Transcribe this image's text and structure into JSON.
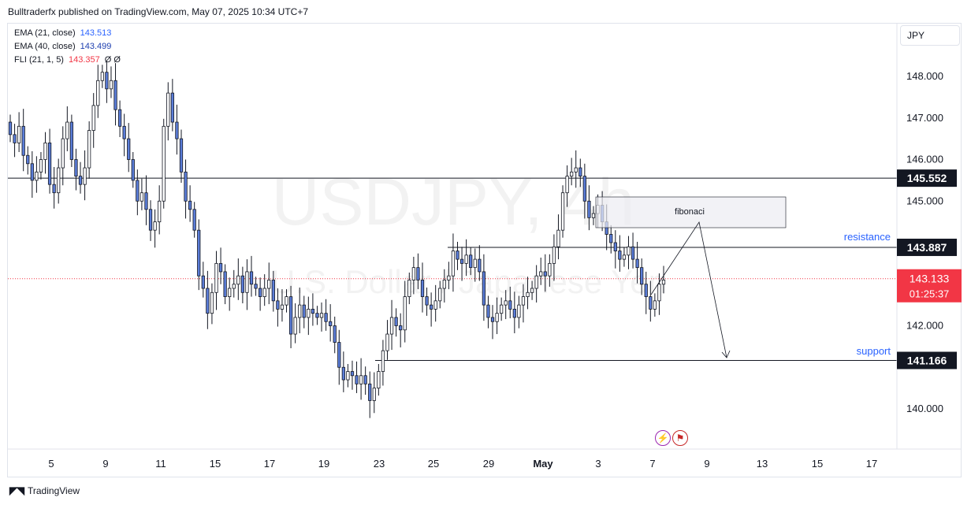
{
  "header": {
    "text": "Bulltraderfx published on TradingView.com, May 07, 2025 10:34 UTC+7"
  },
  "legend": [
    {
      "label": "EMA (21, close)",
      "value": "143.513",
      "color": "#2962ff",
      "extra": ""
    },
    {
      "label": "EMA (40, close)",
      "value": "143.499",
      "color": "#1e3fb0",
      "extra": ""
    },
    {
      "label": "FLI (21, 1, 5)",
      "value": "143.357",
      "color": "#f23645",
      "extra": "Ø  Ø"
    }
  ],
  "currency": "JPY",
  "watermark": {
    "symbol": "USDJPY, 4h",
    "name": "U.S. Dollar / Japanese Yen"
  },
  "footer": {
    "brand": "TradingView"
  },
  "annotations": {
    "fib_label": "fibonaci",
    "resistance_label": "resistance",
    "support_label": "support"
  },
  "colors": {
    "up_candle": "#ffffff",
    "down_candle": "#5b7dd8",
    "candle_border": "#131722",
    "current_price": "#f23645",
    "level_line": "#131722",
    "label_blue": "#2962ff"
  },
  "chart_data": {
    "type": "candlestick",
    "title": "USDJPY, 4h",
    "subtitle": "U.S. Dollar / Japanese Yen",
    "x_tick_labels": [
      "5",
      "9",
      "11",
      "15",
      "17",
      "19",
      "23",
      "25",
      "29",
      "May",
      "3",
      "7",
      "9",
      "13",
      "15",
      "17"
    ],
    "y_tick_labels": [
      "148.000",
      "147.000",
      "146.000",
      "145.000",
      "142.000",
      "140.000"
    ],
    "ylim": [
      139.1,
      148.6
    ],
    "levels": [
      {
        "name": "145.552",
        "value": 145.552
      },
      {
        "name": "143.887",
        "value": 143.887,
        "label": "resistance"
      },
      {
        "name": "141.166",
        "value": 141.166,
        "label": "support"
      }
    ],
    "current_price": {
      "value": "143.133",
      "countdown": "01:25:37"
    },
    "ohlc_close_approx": [
      146.6,
      146.4,
      146.8,
      146.1,
      145.9,
      145.5,
      145.7,
      146.0,
      146.4,
      145.4,
      145.2,
      145.8,
      146.5,
      146.9,
      146.0,
      145.6,
      145.4,
      145.8,
      146.7,
      147.3,
      147.9,
      148.1,
      147.7,
      147.9,
      147.2,
      146.8,
      146.5,
      146.0,
      145.5,
      145.0,
      145.2,
      144.8,
      144.3,
      144.5,
      145.0,
      146.8,
      147.6,
      146.9,
      146.5,
      145.7,
      145.0,
      144.8,
      144.3,
      143.2,
      142.9,
      142.3,
      142.8,
      143.5,
      143.3,
      142.7,
      142.9,
      143.0,
      143.2,
      142.8,
      143.3,
      143.0,
      142.9,
      142.7,
      142.9,
      143.1,
      142.6,
      142.4,
      142.5,
      142.7,
      141.8,
      142.2,
      142.5,
      142.2,
      142.4,
      142.3,
      142.2,
      142.3,
      142.1,
      142.0,
      141.6,
      141.0,
      140.7,
      140.9,
      140.8,
      140.6,
      140.8,
      140.6,
      140.2,
      140.5,
      140.9,
      141.4,
      141.8,
      142.2,
      142.0,
      141.9,
      142.7,
      143.1,
      143.4,
      143.1,
      142.7,
      142.5,
      142.4,
      142.6,
      142.9,
      143.1,
      143.2,
      143.8,
      143.6,
      143.5,
      143.7,
      143.4,
      143.6,
      143.3,
      142.5,
      142.2,
      142.1,
      142.3,
      142.5,
      142.6,
      142.4,
      142.2,
      142.5,
      142.7,
      142.8,
      142.9,
      143.2,
      143.3,
      143.2,
      143.5,
      143.9,
      144.3,
      145.2,
      145.6,
      145.7,
      145.8,
      145.6,
      145.0,
      144.6,
      144.7,
      144.9,
      144.5,
      144.2,
      144.0,
      143.8,
      143.6,
      143.7,
      143.9,
      143.6,
      143.4,
      143.0,
      142.7,
      142.4,
      142.6,
      143.0,
      143.1
    ]
  }
}
